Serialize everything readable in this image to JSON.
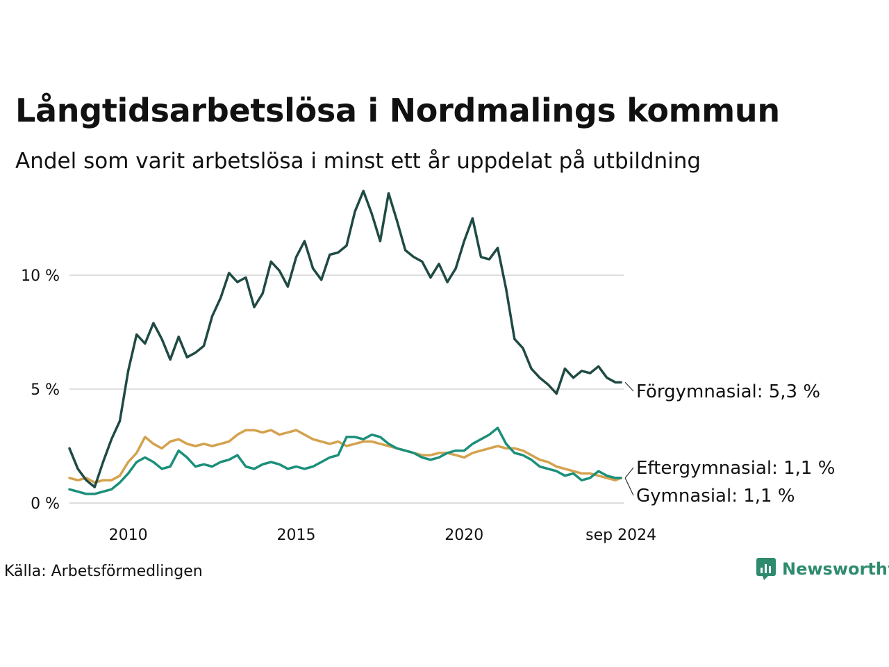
{
  "title": "Långtidsarbetslösa i Nordmalings kommun",
  "subtitle": "Andel som varit arbetslösa i minst ett år uppdelat på utbildning",
  "source": "Källa: Arbetsförmedlingen",
  "brand": "Newsworthy",
  "colors": {
    "forgymnasial": "#1f4a44",
    "gymnasial": "#d4a24e",
    "eftergymnasial": "#1b8f7a",
    "grid": "#dddddd",
    "brand": "#2e8b6e"
  },
  "chart_data": {
    "type": "line",
    "ylim": [
      0,
      14
    ],
    "yticks": [
      {
        "value": 0,
        "label": "0 %"
      },
      {
        "value": 5,
        "label": "5 %"
      },
      {
        "value": 10,
        "label": "10 %"
      }
    ],
    "xlim": [
      2008.25,
      2024.75
    ],
    "xticks": [
      {
        "value": 2010,
        "label": "2010"
      },
      {
        "value": 2015,
        "label": "2015"
      },
      {
        "value": 2020,
        "label": "2020"
      },
      {
        "value": 2024.67,
        "label": "sep 2024"
      }
    ],
    "grid": true,
    "series": [
      {
        "key": "forgymnasial",
        "name": "Förgymnasial",
        "end_label": "Förgymnasial: 5,3 %",
        "x": [
          2008.25,
          2008.5,
          2008.75,
          2009.0,
          2009.25,
          2009.5,
          2009.75,
          2010.0,
          2010.25,
          2010.5,
          2010.75,
          2011.0,
          2011.25,
          2011.5,
          2011.75,
          2012.0,
          2012.25,
          2012.5,
          2012.75,
          2013.0,
          2013.25,
          2013.5,
          2013.75,
          2014.0,
          2014.25,
          2014.5,
          2014.75,
          2015.0,
          2015.25,
          2015.5,
          2015.75,
          2016.0,
          2016.25,
          2016.5,
          2016.75,
          2017.0,
          2017.25,
          2017.5,
          2017.75,
          2018.0,
          2018.25,
          2018.5,
          2018.75,
          2019.0,
          2019.25,
          2019.5,
          2019.75,
          2020.0,
          2020.25,
          2020.5,
          2020.75,
          2021.0,
          2021.25,
          2021.5,
          2021.75,
          2022.0,
          2022.25,
          2022.5,
          2022.75,
          2023.0,
          2023.25,
          2023.5,
          2023.75,
          2024.0,
          2024.25,
          2024.5,
          2024.67
        ],
        "values": [
          2.4,
          1.5,
          1.0,
          0.7,
          1.8,
          2.8,
          3.6,
          5.8,
          7.4,
          7.0,
          7.9,
          7.2,
          6.3,
          7.3,
          6.4,
          6.6,
          6.9,
          8.2,
          9.0,
          10.1,
          9.7,
          9.9,
          8.6,
          9.2,
          10.6,
          10.2,
          9.5,
          10.8,
          11.5,
          10.3,
          9.8,
          10.9,
          11.0,
          11.3,
          12.8,
          13.7,
          12.7,
          11.5,
          13.6,
          12.4,
          11.1,
          10.8,
          10.6,
          9.9,
          10.5,
          9.7,
          10.3,
          11.5,
          12.5,
          10.8,
          10.7,
          11.2,
          9.4,
          7.2,
          6.8,
          5.9,
          5.5,
          5.2,
          4.8,
          5.9,
          5.5,
          5.8,
          5.7,
          6.0,
          5.5,
          5.3,
          5.3
        ]
      },
      {
        "key": "gymnasial",
        "name": "Gymnasial",
        "end_label": "Gymnasial: 1,1 %",
        "x": [
          2008.25,
          2008.5,
          2008.75,
          2009.0,
          2009.25,
          2009.5,
          2009.75,
          2010.0,
          2010.25,
          2010.5,
          2010.75,
          2011.0,
          2011.25,
          2011.5,
          2011.75,
          2012.0,
          2012.25,
          2012.5,
          2012.75,
          2013.0,
          2013.25,
          2013.5,
          2013.75,
          2014.0,
          2014.25,
          2014.5,
          2014.75,
          2015.0,
          2015.25,
          2015.5,
          2015.75,
          2016.0,
          2016.25,
          2016.5,
          2016.75,
          2017.0,
          2017.25,
          2017.5,
          2017.75,
          2018.0,
          2018.25,
          2018.5,
          2018.75,
          2019.0,
          2019.25,
          2019.5,
          2019.75,
          2020.0,
          2020.25,
          2020.5,
          2020.75,
          2021.0,
          2021.25,
          2021.5,
          2021.75,
          2022.0,
          2022.25,
          2022.5,
          2022.75,
          2023.0,
          2023.25,
          2023.5,
          2023.75,
          2024.0,
          2024.25,
          2024.5,
          2024.67
        ],
        "values": [
          1.1,
          1.0,
          1.1,
          0.9,
          1.0,
          1.0,
          1.2,
          1.8,
          2.2,
          2.9,
          2.6,
          2.4,
          2.7,
          2.8,
          2.6,
          2.5,
          2.6,
          2.5,
          2.6,
          2.7,
          3.0,
          3.2,
          3.2,
          3.1,
          3.2,
          3.0,
          3.1,
          3.2,
          3.0,
          2.8,
          2.7,
          2.6,
          2.7,
          2.5,
          2.6,
          2.7,
          2.7,
          2.6,
          2.5,
          2.4,
          2.3,
          2.2,
          2.1,
          2.1,
          2.2,
          2.2,
          2.1,
          2.0,
          2.2,
          2.3,
          2.4,
          2.5,
          2.4,
          2.4,
          2.3,
          2.1,
          1.9,
          1.8,
          1.6,
          1.5,
          1.4,
          1.3,
          1.3,
          1.2,
          1.1,
          1.0,
          1.1
        ]
      },
      {
        "key": "eftergymnasial",
        "name": "Eftergymnasial",
        "end_label": "Eftergymnasial: 1,1 %",
        "x": [
          2008.25,
          2008.5,
          2008.75,
          2009.0,
          2009.25,
          2009.5,
          2009.75,
          2010.0,
          2010.25,
          2010.5,
          2010.75,
          2011.0,
          2011.25,
          2011.5,
          2011.75,
          2012.0,
          2012.25,
          2012.5,
          2012.75,
          2013.0,
          2013.25,
          2013.5,
          2013.75,
          2014.0,
          2014.25,
          2014.5,
          2014.75,
          2015.0,
          2015.25,
          2015.5,
          2015.75,
          2016.0,
          2016.25,
          2016.5,
          2016.75,
          2017.0,
          2017.25,
          2017.5,
          2017.75,
          2018.0,
          2018.25,
          2018.5,
          2018.75,
          2019.0,
          2019.25,
          2019.5,
          2019.75,
          2020.0,
          2020.25,
          2020.5,
          2020.75,
          2021.0,
          2021.25,
          2021.5,
          2021.75,
          2022.0,
          2022.25,
          2022.5,
          2022.75,
          2023.0,
          2023.25,
          2023.5,
          2023.75,
          2024.0,
          2024.25,
          2024.5,
          2024.67
        ],
        "values": [
          0.6,
          0.5,
          0.4,
          0.4,
          0.5,
          0.6,
          0.9,
          1.3,
          1.8,
          2.0,
          1.8,
          1.5,
          1.6,
          2.3,
          2.0,
          1.6,
          1.7,
          1.6,
          1.8,
          1.9,
          2.1,
          1.6,
          1.5,
          1.7,
          1.8,
          1.7,
          1.5,
          1.6,
          1.5,
          1.6,
          1.8,
          2.0,
          2.1,
          2.9,
          2.9,
          2.8,
          3.0,
          2.9,
          2.6,
          2.4,
          2.3,
          2.2,
          2.0,
          1.9,
          2.0,
          2.2,
          2.3,
          2.3,
          2.6,
          2.8,
          3.0,
          3.3,
          2.6,
          2.2,
          2.1,
          1.9,
          1.6,
          1.5,
          1.4,
          1.2,
          1.3,
          1.0,
          1.1,
          1.4,
          1.2,
          1.1,
          1.1
        ]
      }
    ]
  }
}
